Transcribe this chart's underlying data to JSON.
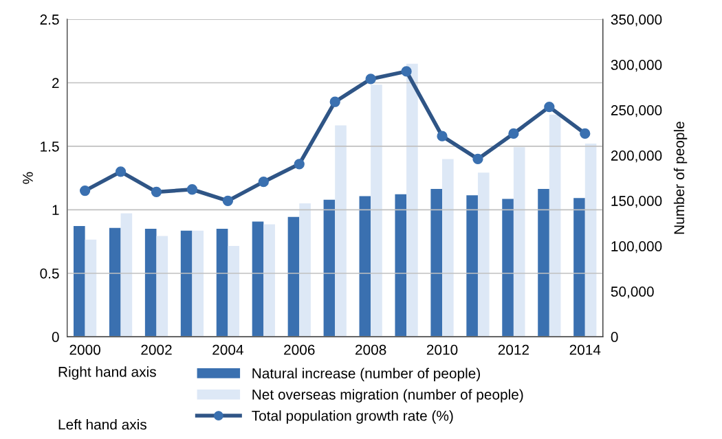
{
  "chart_data": {
    "type": "bar",
    "categories": [
      "2000",
      null,
      "2002",
      null,
      "2004",
      null,
      "2006",
      null,
      "2008",
      null,
      "2010",
      null,
      "2012",
      null,
      "2014"
    ],
    "series": [
      {
        "name": "Natural increase (number of people)",
        "color": "#3a70b0",
        "axis": "y2",
        "values": [
          122000,
          120000,
          119000,
          117000,
          119000,
          127000,
          132000,
          151000,
          155000,
          157000,
          163000,
          156000,
          152000,
          163000,
          153000
        ]
      },
      {
        "name": "Net overseas migration (number of people)",
        "color": "#dde8f6",
        "axis": "y2",
        "values": [
          107000,
          136000,
          111000,
          117000,
          100000,
          124000,
          147000,
          233000,
          278000,
          301000,
          196000,
          181000,
          209000,
          245000,
          213000
        ]
      },
      {
        "name": "Total population growth rate (%)",
        "type": "line",
        "color": "#2f5586",
        "axis": "y",
        "marker": "circle",
        "values": [
          1.15,
          1.3,
          1.14,
          1.16,
          1.07,
          1.22,
          1.36,
          1.85,
          2.03,
          2.09,
          1.58,
          1.4,
          1.6,
          1.81,
          1.6
        ]
      }
    ],
    "ylabel": "%",
    "y2label": "Number of people",
    "ylim": [
      0,
      2.5
    ],
    "yticks": [
      0,
      0.5,
      1,
      1.5,
      2,
      2.5
    ],
    "y2lim": [
      0,
      350000
    ],
    "y2ticks": [
      0,
      {
        "value": 50000,
        "label": "50,000"
      },
      {
        "value": 100000,
        "label": "100,000"
      },
      {
        "value": 150000,
        "label": "150,000"
      },
      {
        "value": 200000,
        "label": "200,000"
      },
      {
        "value": 250000,
        "label": "250,000"
      },
      {
        "value": 300000,
        "label": "300,000"
      },
      {
        "value": 350000,
        "label": "350,000"
      }
    ],
    "grid": "y",
    "legend": "bottom",
    "annotations": [
      "Right hand axis",
      "Left hand axis"
    ]
  }
}
